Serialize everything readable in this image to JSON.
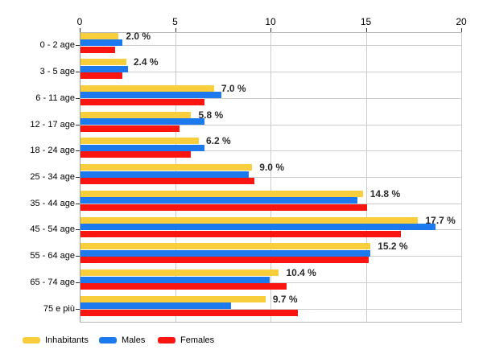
{
  "chart_data": {
    "type": "bar",
    "orientation": "horizontal",
    "title": "",
    "categories": [
      "0 - 2 age",
      "3 - 5 age",
      "6 - 11 age",
      "12 - 17 age",
      "18 - 24 age",
      "25 - 34 age",
      "35 - 44 age",
      "45 - 54 age",
      "55 - 64 age",
      "65 - 74 age",
      "75 e più"
    ],
    "series": [
      {
        "name": "Inhabitants",
        "color": "#F8CE3D",
        "values": [
          2.0,
          2.4,
          7.0,
          5.8,
          6.2,
          9.0,
          14.8,
          17.7,
          15.2,
          10.4,
          9.7
        ]
      },
      {
        "name": "Males",
        "color": "#1D7AEE",
        "values": [
          2.2,
          2.5,
          7.4,
          6.5,
          6.5,
          8.8,
          14.5,
          18.6,
          15.2,
          9.9,
          7.9
        ]
      },
      {
        "name": "Females",
        "color": "#FB1510",
        "values": [
          1.8,
          2.2,
          6.5,
          5.2,
          5.8,
          9.1,
          15.0,
          16.8,
          15.1,
          10.8,
          11.4
        ]
      }
    ],
    "data_labels": [
      "2.0 %",
      "2.4 %",
      "7.0 %",
      "5.8 %",
      "6.2 %",
      "9.0 %",
      "14.8 %",
      "17.7 %",
      "15.2 %",
      "10.4 %",
      "9.7 %"
    ],
    "x_axis": {
      "min": 0,
      "max": 20,
      "ticks": [
        0,
        5,
        10,
        15,
        20
      ],
      "position": "top"
    },
    "y_axis": {
      "label": "",
      "tick_marks": true
    },
    "grid": {
      "vertical": true,
      "horizontal_at_category_centers": true,
      "color": "#cccccc"
    },
    "legend": {
      "position": "bottom-left",
      "entries": [
        "Inhabitants",
        "Males",
        "Females"
      ]
    },
    "xlim": [
      0,
      20
    ],
    "background": "#ffffff"
  }
}
